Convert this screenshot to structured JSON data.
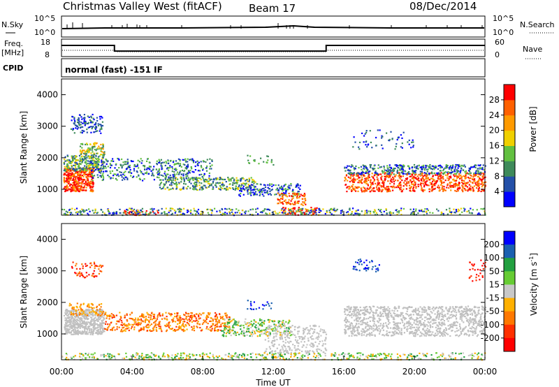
{
  "header": {
    "title": "Christmas Valley West (fitACF)",
    "beam": "Beam 17",
    "date": "08/Dec/2014"
  },
  "summary_labels": {
    "nsky": "N.Sky",
    "freq": "Freq.",
    "freq_unit": "[MHz]",
    "cpid": "CPID",
    "nsearch": "N.Search",
    "nave": "Nave",
    "cpid_text": "normal (fast) -151 IF"
  },
  "summary_ticks": {
    "nsky_top": "10^5",
    "nsky_bottom": "10^0",
    "nsearch_top": "10^5",
    "nsearch_bottom": "10^0",
    "freq_top": "18",
    "freq_bottom": "8",
    "nave_top": "60",
    "nave_bottom": "0"
  },
  "colors": {
    "power_scale": [
      "#0000ff",
      "#2450a8",
      "#3e8a5a",
      "#62c040",
      "#f0d000",
      "#ff9a00",
      "#ff6000",
      "#ff0000"
    ],
    "velocity_scale": [
      "#0000ff",
      "#1a60b0",
      "#22a040",
      "#66cc33",
      "#c8c8c8",
      "#ffb000",
      "#ff7800",
      "#ff3000",
      "#ff0000"
    ],
    "ground_scatter": "#c0c0c0"
  },
  "chart_data": [
    {
      "type": "line",
      "panel": "summary",
      "title": "N.Sky / N.Search / Freq / Nave",
      "x": [
        "00:00",
        "03:00",
        "15:00",
        "24:00"
      ],
      "series": [
        {
          "name": "Freq. [MHz]",
          "values": [
            14.5,
            11.0,
            14.5,
            14.5
          ]
        }
      ],
      "ylim_freq": [
        8,
        18
      ],
      "ylim_nave": [
        0,
        60
      ]
    },
    {
      "type": "heatmap",
      "panel": "power",
      "xlabel": "",
      "ylabel": "Slant Range [km]",
      "x_ticks": [
        "00:00",
        "04:00",
        "08:00",
        "12:00",
        "16:00",
        "20:00",
        "00:00"
      ],
      "y_ticks": [
        1000,
        2000,
        3000,
        4000
      ],
      "xlim_hours": [
        0,
        24
      ],
      "ylim_km": [
        180,
        4500
      ],
      "colorbar": {
        "label": "Power [dB]",
        "ticks": [
          4,
          8,
          12,
          16,
          20,
          24,
          28
        ],
        "range": [
          0,
          32
        ]
      }
    },
    {
      "type": "heatmap",
      "panel": "velocity",
      "xlabel": "Time UT",
      "ylabel": "Slant Range [km]",
      "x_ticks": [
        "00:00",
        "04:00",
        "08:00",
        "12:00",
        "16:00",
        "20:00",
        "00:00"
      ],
      "y_ticks": [
        1000,
        2000,
        3000,
        4000
      ],
      "xlim_hours": [
        0,
        24
      ],
      "ylim_km": [
        180,
        4500
      ],
      "colorbar": {
        "label": "Velocity [m s-1]",
        "label_parts": [
          "Velocity [m s",
          "-1",
          "]"
        ],
        "ticks": [
          200,
          100,
          50,
          15,
          -15,
          -50,
          -100,
          -200
        ]
      }
    }
  ]
}
